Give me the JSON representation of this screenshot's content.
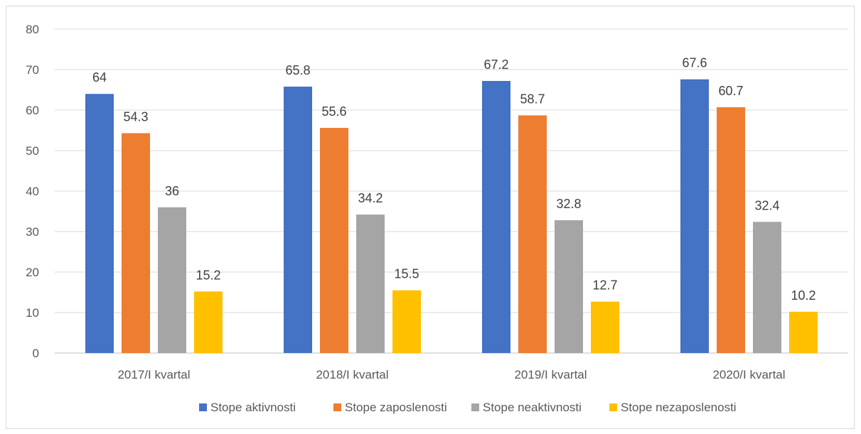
{
  "chart_data": {
    "type": "bar",
    "title": "",
    "xlabel": "",
    "ylabel": "",
    "ylim": [
      0,
      80
    ],
    "yticks": [
      0,
      10,
      20,
      30,
      40,
      50,
      60,
      70,
      80
    ],
    "grid": true,
    "legend_position": "bottom",
    "categories": [
      "2017/I kvartal",
      "2018/I kvartal",
      "2019/I kvartal",
      "2020/I kvartal"
    ],
    "series": [
      {
        "name": "Stope aktivnosti",
        "color": "#4472C4",
        "values": [
          64,
          65.8,
          67.2,
          67.6
        ]
      },
      {
        "name": "Stope zaposlenosti",
        "color": "#ED7D31",
        "values": [
          54.3,
          55.6,
          58.7,
          60.7
        ]
      },
      {
        "name": "Stope neaktivnosti",
        "color": "#A5A5A5",
        "values": [
          36,
          34.2,
          32.8,
          32.4
        ]
      },
      {
        "name": "Stope nezaposlenosti",
        "color": "#FFC000",
        "values": [
          15.2,
          15.5,
          12.7,
          10.2
        ]
      }
    ]
  }
}
